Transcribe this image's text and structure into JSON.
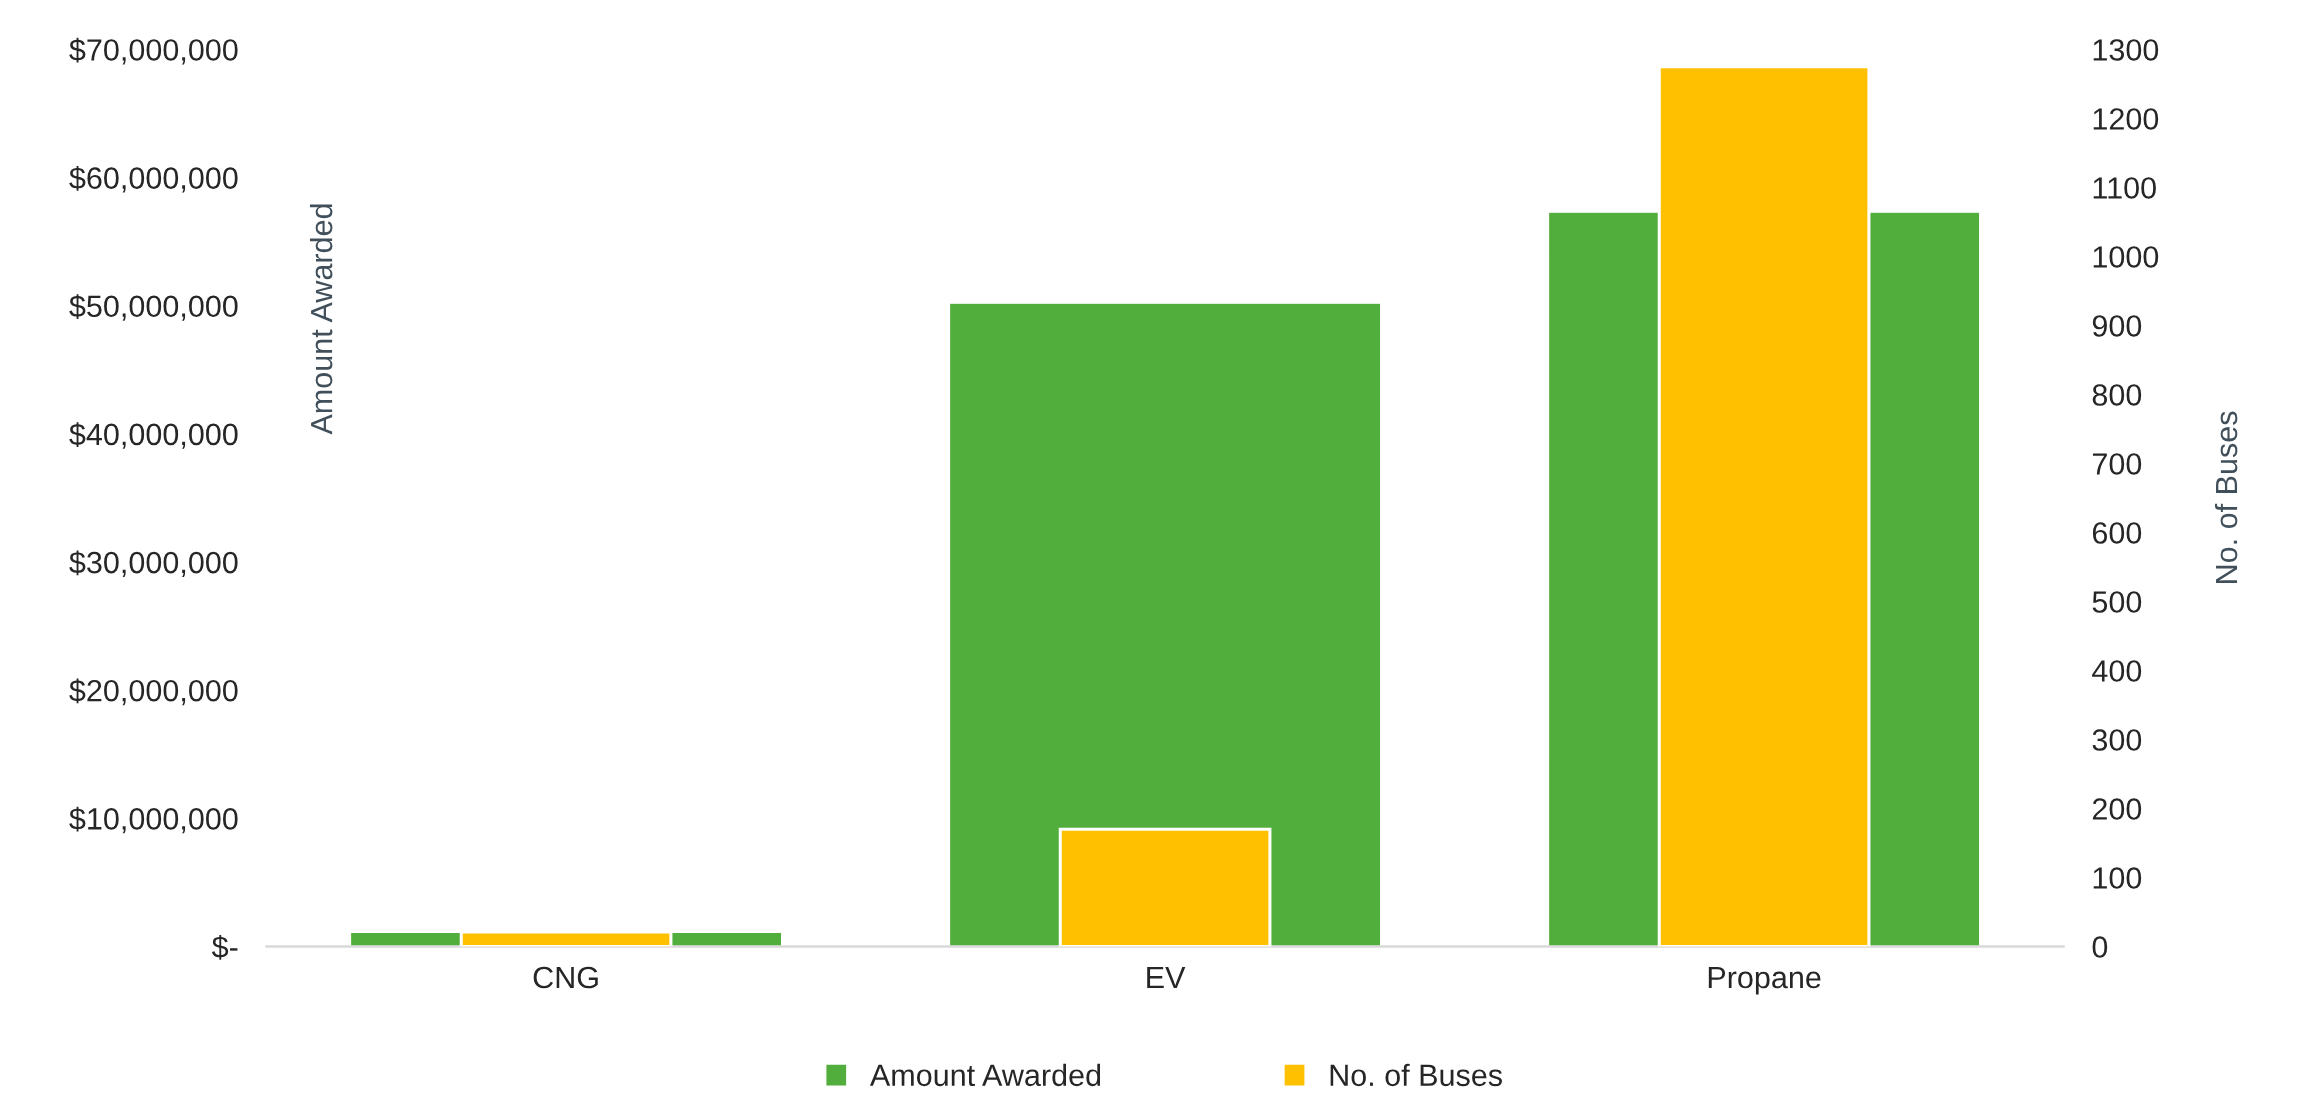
{
  "chart_data": {
    "type": "bar",
    "categories": [
      "CNG",
      "EV",
      "Propane"
    ],
    "ylabel": "Amount Awarded",
    "y2label": "No. of Buses",
    "series": [
      {
        "name": "Amount Awarded",
        "color": "#52ae3c",
        "values": [
          1100000,
          50200000,
          57300000
        ]
      },
      {
        "name": "No. of Buses",
        "color": "#ffc000",
        "values": [
          21,
          170,
          1275
        ],
        "axis": "y2"
      }
    ],
    "ylim": [
      0,
      70000000
    ],
    "yticks": [
      {
        "value": 0,
        "label": "$-"
      },
      {
        "value": 10000000,
        "label": "$10,000,000"
      },
      {
        "value": 20000000,
        "label": "$20,000,000"
      },
      {
        "value": 30000000,
        "label": "$30,000,000"
      },
      {
        "value": 40000000,
        "label": "$40,000,000"
      },
      {
        "value": 50000000,
        "label": "$50,000,000"
      },
      {
        "value": 60000000,
        "label": "$60,000,000"
      },
      {
        "value": 70000000,
        "label": "$70,000,000"
      }
    ],
    "y2lim": [
      0,
      1300
    ],
    "y2ticks": [
      0,
      100,
      200,
      300,
      400,
      500,
      600,
      700,
      800,
      900,
      1000,
      1100,
      1200,
      1300
    ],
    "grid": false,
    "legend": "bottom"
  }
}
